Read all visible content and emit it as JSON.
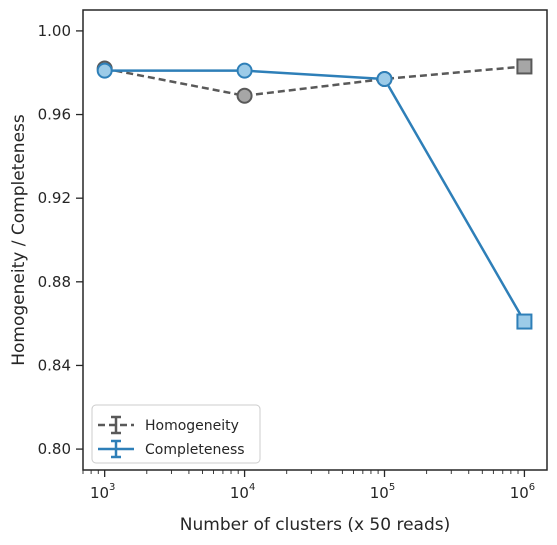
{
  "chart_data": {
    "type": "line",
    "xscale": "log",
    "xlabel": "Number of clusters (x 50 reads)",
    "ylabel": "Homogeneity / Completeness",
    "xlim": [
      700,
      1450000
    ],
    "ylim": [
      0.79,
      1.01
    ],
    "x_ticks": [
      {
        "value": 1000,
        "base": "10",
        "exp": "3"
      },
      {
        "value": 10000,
        "base": "10",
        "exp": "4"
      },
      {
        "value": 100000,
        "base": "10",
        "exp": "5"
      },
      {
        "value": 1000000,
        "base": "10",
        "exp": "6"
      }
    ],
    "y_ticks": [
      {
        "value": 0.8,
        "label": "0.80"
      },
      {
        "value": 0.84,
        "label": "0.84"
      },
      {
        "value": 0.88,
        "label": "0.88"
      },
      {
        "value": 0.92,
        "label": "0.92"
      },
      {
        "value": 0.96,
        "label": "0.96"
      },
      {
        "value": 1.0,
        "label": "1.00"
      }
    ],
    "grid": false,
    "legend_position": "lower-left",
    "series": [
      {
        "name": "Homogeneity",
        "color": "#595959",
        "marker_fill": "#a6a6a6",
        "line_style": "dashed",
        "points": [
          {
            "x": 1000,
            "y": 0.982,
            "marker": "circle"
          },
          {
            "x": 10000,
            "y": 0.969,
            "marker": "circle"
          },
          {
            "x": 100000,
            "y": 0.977,
            "marker": "circle"
          },
          {
            "x": 1000000,
            "y": 0.983,
            "marker": "square"
          }
        ]
      },
      {
        "name": "Completeness",
        "color": "#2e7fb8",
        "marker_fill": "#9ccbe8",
        "line_style": "solid",
        "points": [
          {
            "x": 1000,
            "y": 0.981,
            "marker": "circle"
          },
          {
            "x": 10000,
            "y": 0.981,
            "marker": "circle"
          },
          {
            "x": 100000,
            "y": 0.977,
            "marker": "circle"
          },
          {
            "x": 1000000,
            "y": 0.861,
            "marker": "square"
          }
        ]
      }
    ]
  }
}
